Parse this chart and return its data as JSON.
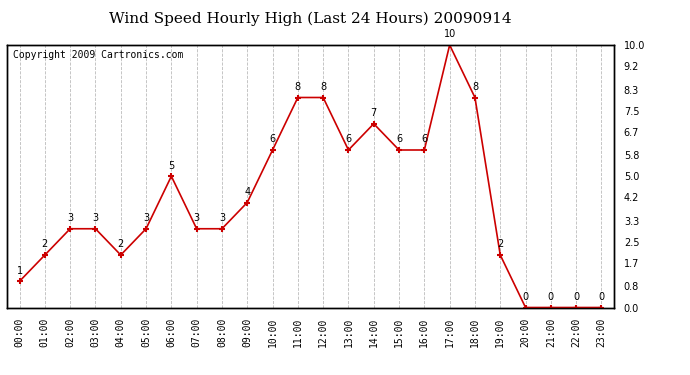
{
  "title": "Wind Speed Hourly High (Last 24 Hours) 20090914",
  "copyright": "Copyright 2009 Cartronics.com",
  "hours": [
    "00:00",
    "01:00",
    "02:00",
    "03:00",
    "04:00",
    "05:00",
    "06:00",
    "07:00",
    "08:00",
    "09:00",
    "10:00",
    "11:00",
    "12:00",
    "13:00",
    "14:00",
    "15:00",
    "16:00",
    "17:00",
    "18:00",
    "19:00",
    "20:00",
    "21:00",
    "22:00",
    "23:00"
  ],
  "values": [
    1,
    2,
    3,
    3,
    2,
    3,
    5,
    3,
    3,
    4,
    6,
    8,
    8,
    6,
    7,
    6,
    6,
    10,
    8,
    2,
    0,
    0,
    0,
    0
  ],
  "line_color": "#cc0000",
  "marker_color": "#cc0000",
  "bg_color": "#ffffff",
  "grid_color": "#bbbbbb",
  "ylim": [
    0,
    10.0
  ],
  "yticks_right": [
    0.0,
    0.8,
    1.7,
    2.5,
    3.3,
    4.2,
    5.0,
    5.8,
    6.7,
    7.5,
    8.3,
    9.2,
    10.0
  ],
  "title_fontsize": 11,
  "copyright_fontsize": 7,
  "label_fontsize": 7,
  "annot_fontsize": 7
}
